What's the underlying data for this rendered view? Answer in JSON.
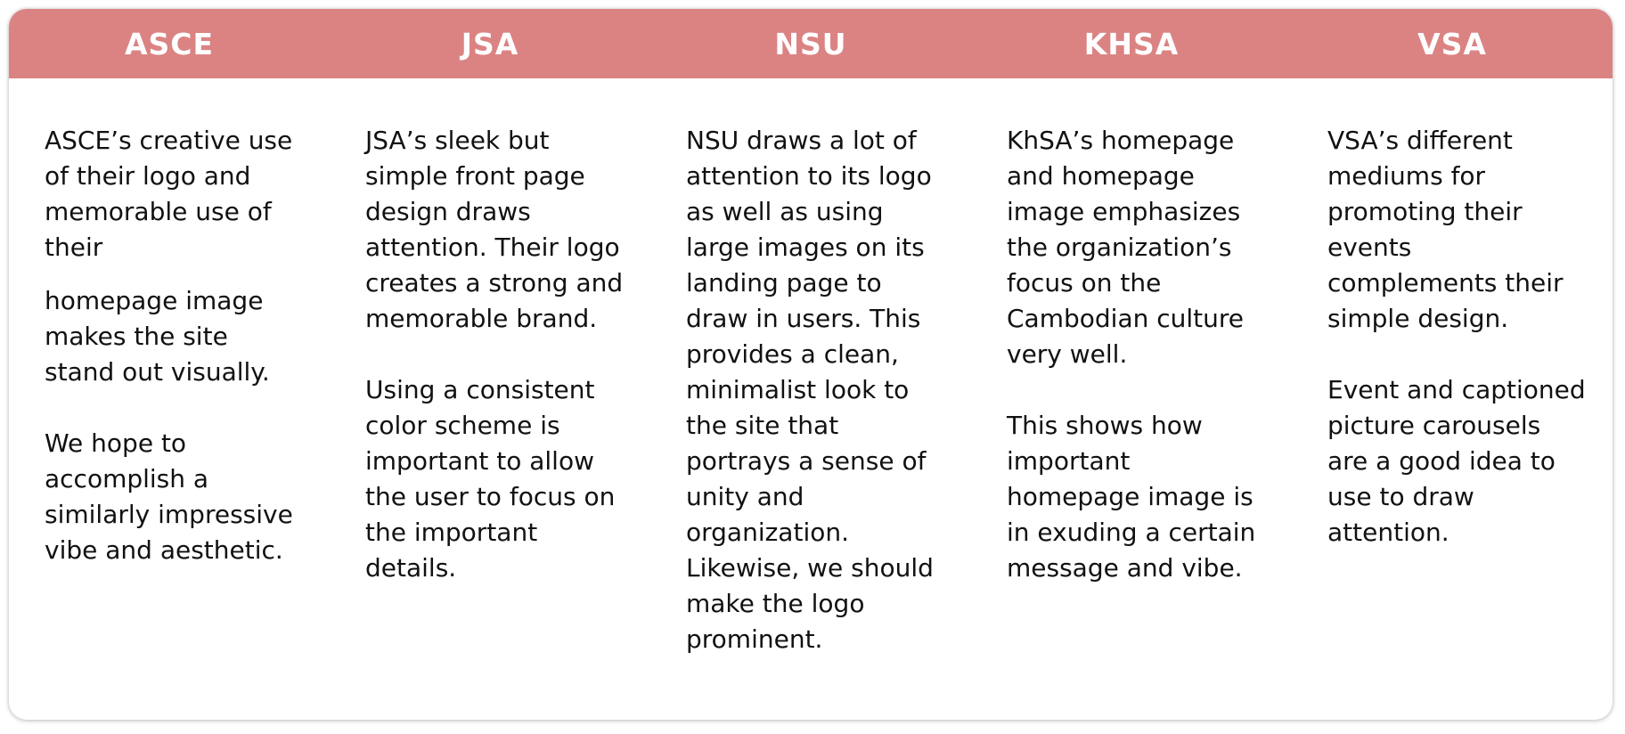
{
  "columns": [
    {
      "heading": "ASCE",
      "paragraphs": [
        "ASCE’s creative use of their logo and memorable use of their",
        "homepage image makes the site stand out visually.",
        "We hope to accomplish a similarly impressive vibe and aesthetic."
      ]
    },
    {
      "heading": "JSA",
      "paragraphs": [
        "JSA’s sleek but simple front page design draws attention. Their logo creates a strong and memorable brand.",
        "Using a consistent color scheme is important to allow the user to focus on the important details."
      ]
    },
    {
      "heading": "NSU",
      "paragraphs": [
        "NSU draws a lot of attention to its logo as well as using large images on its landing page to draw in users. This provides a clean, minimalist look to the site that portrays a sense of unity and organization. Likewise, we should make the logo prominent."
      ]
    },
    {
      "heading": "KHSA",
      "paragraphs": [
        "KhSA’s homepage and homepage image emphasizes the organization’s focus on the Cambodian culture very well.",
        "This shows how important homepage image is in exuding a certain message and vibe."
      ]
    },
    {
      "heading": "VSA",
      "paragraphs": [
        "VSA’s different mediums for promoting their events complements their simple design.",
        "Event and captioned picture carousels are a good idea to use to draw attention."
      ]
    }
  ],
  "colors": {
    "header_background": "#db8383",
    "header_text": "#ffffff",
    "body_text": "#111111"
  }
}
